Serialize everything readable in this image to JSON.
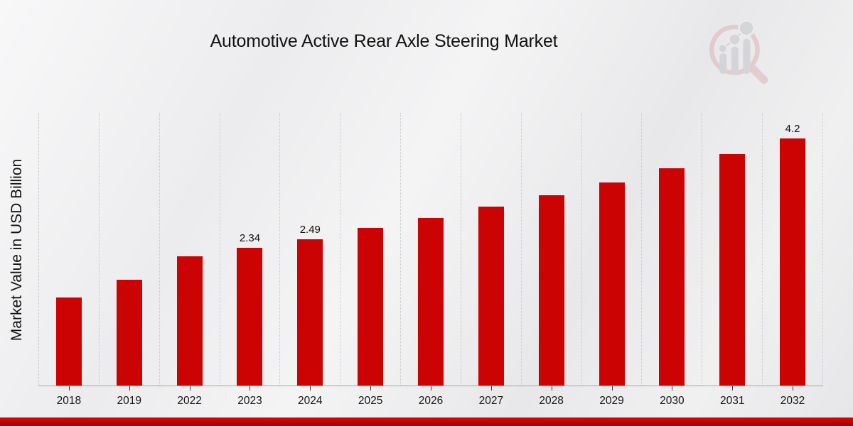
{
  "header": {
    "title": "Automotive Active Rear Axle Steering Market"
  },
  "chart_data": {
    "type": "bar",
    "title": "Automotive Active Rear Axle Steering Market",
    "xlabel": "",
    "ylabel": "Market Value in USD Billion",
    "categories": [
      "2018",
      "2019",
      "2022",
      "2023",
      "2024",
      "2025",
      "2026",
      "2027",
      "2028",
      "2029",
      "2030",
      "2031",
      "2032"
    ],
    "values": [
      1.5,
      1.8,
      2.2,
      2.34,
      2.49,
      2.68,
      2.85,
      3.04,
      3.24,
      3.46,
      3.69,
      3.94,
      4.2
    ],
    "data_labels": [
      "",
      "",
      "",
      "2.34",
      "2.49",
      "",
      "",
      "",
      "",
      "",
      "",
      "",
      "4.2"
    ],
    "ylim": [
      0,
      4.65
    ],
    "y_ticks_visible": false,
    "grid": "vertical dotted lines between categories",
    "legend": "none",
    "bar_color": "#cc0303"
  },
  "colors": {
    "bar": "#cc0303",
    "strip_top": "#d20909",
    "strip_bottom": "#9c0101",
    "grid": "#c8c8c8",
    "axis": "#a6a6a6",
    "text": "#121212",
    "background_light": "#f5f5f6",
    "background_dark": "#e7e7e9",
    "logo_ring_pink": "#dcb4b4",
    "logo_bars_gray": "#c5c5cb"
  }
}
